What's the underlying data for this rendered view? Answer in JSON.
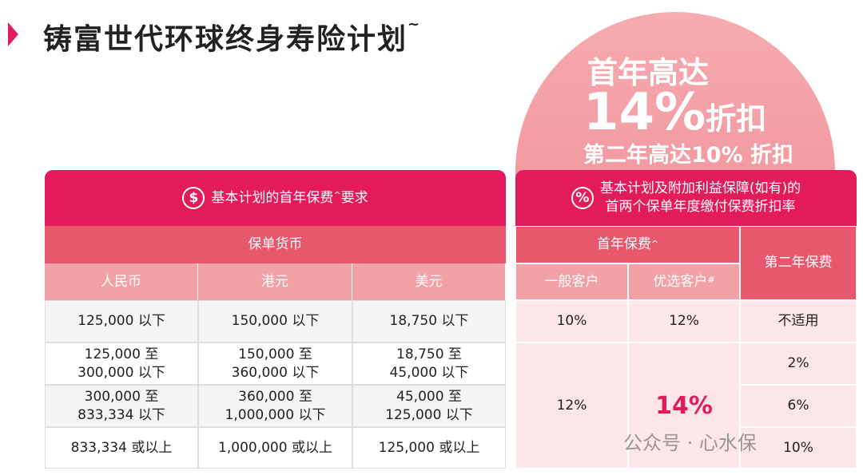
{
  "header": {
    "title": "铸富世代环球终身寿险计划",
    "title_mark": "~"
  },
  "promo": {
    "line1": "首年高达",
    "big": "14%",
    "big_suffix": "折扣",
    "line3": "第二年高达10% 折扣"
  },
  "left_table": {
    "icon": "$",
    "title": "基本计划的首年保费",
    "title_mark": "^",
    "title_suffix": "要求",
    "group": "保单货币",
    "columns": [
      "人民币",
      "港元",
      "美元"
    ],
    "rows": [
      [
        [
          "125,000 以下"
        ],
        [
          "150,000 以下"
        ],
        [
          "18,750 以下"
        ]
      ],
      [
        [
          "125,000 至",
          "300,000 以下"
        ],
        [
          "150,000 至",
          "360,000 以下"
        ],
        [
          "18,750 至",
          "45,000 以下"
        ]
      ],
      [
        [
          "300,000 至",
          "833,334 以下"
        ],
        [
          "360,000 至",
          "1,000,000 以下"
        ],
        [
          "45,000 至",
          "125,000 以下"
        ]
      ],
      [
        [
          "833,334 或以上"
        ],
        [
          "1,000,000 或以上"
        ],
        [
          "125,000 或以上"
        ]
      ]
    ]
  },
  "right_table": {
    "icon": "%",
    "title_lines": [
      "基本计划及附加利益保障(如有)的",
      "首两个保单年度缴付保费折扣率"
    ],
    "first_year": "首年保费",
    "first_year_mark": "^",
    "second_year": "第二年保费",
    "columns": [
      "一般客户",
      "优选客户"
    ],
    "column_mark": "#",
    "first_row": [
      "10%",
      "12%",
      "不适用"
    ],
    "general_rate": "12%",
    "preferred_rate": "14%",
    "second_year_rates": [
      "2%",
      "6%",
      "10%"
    ]
  },
  "watermark": "公众号 · 心水保"
}
